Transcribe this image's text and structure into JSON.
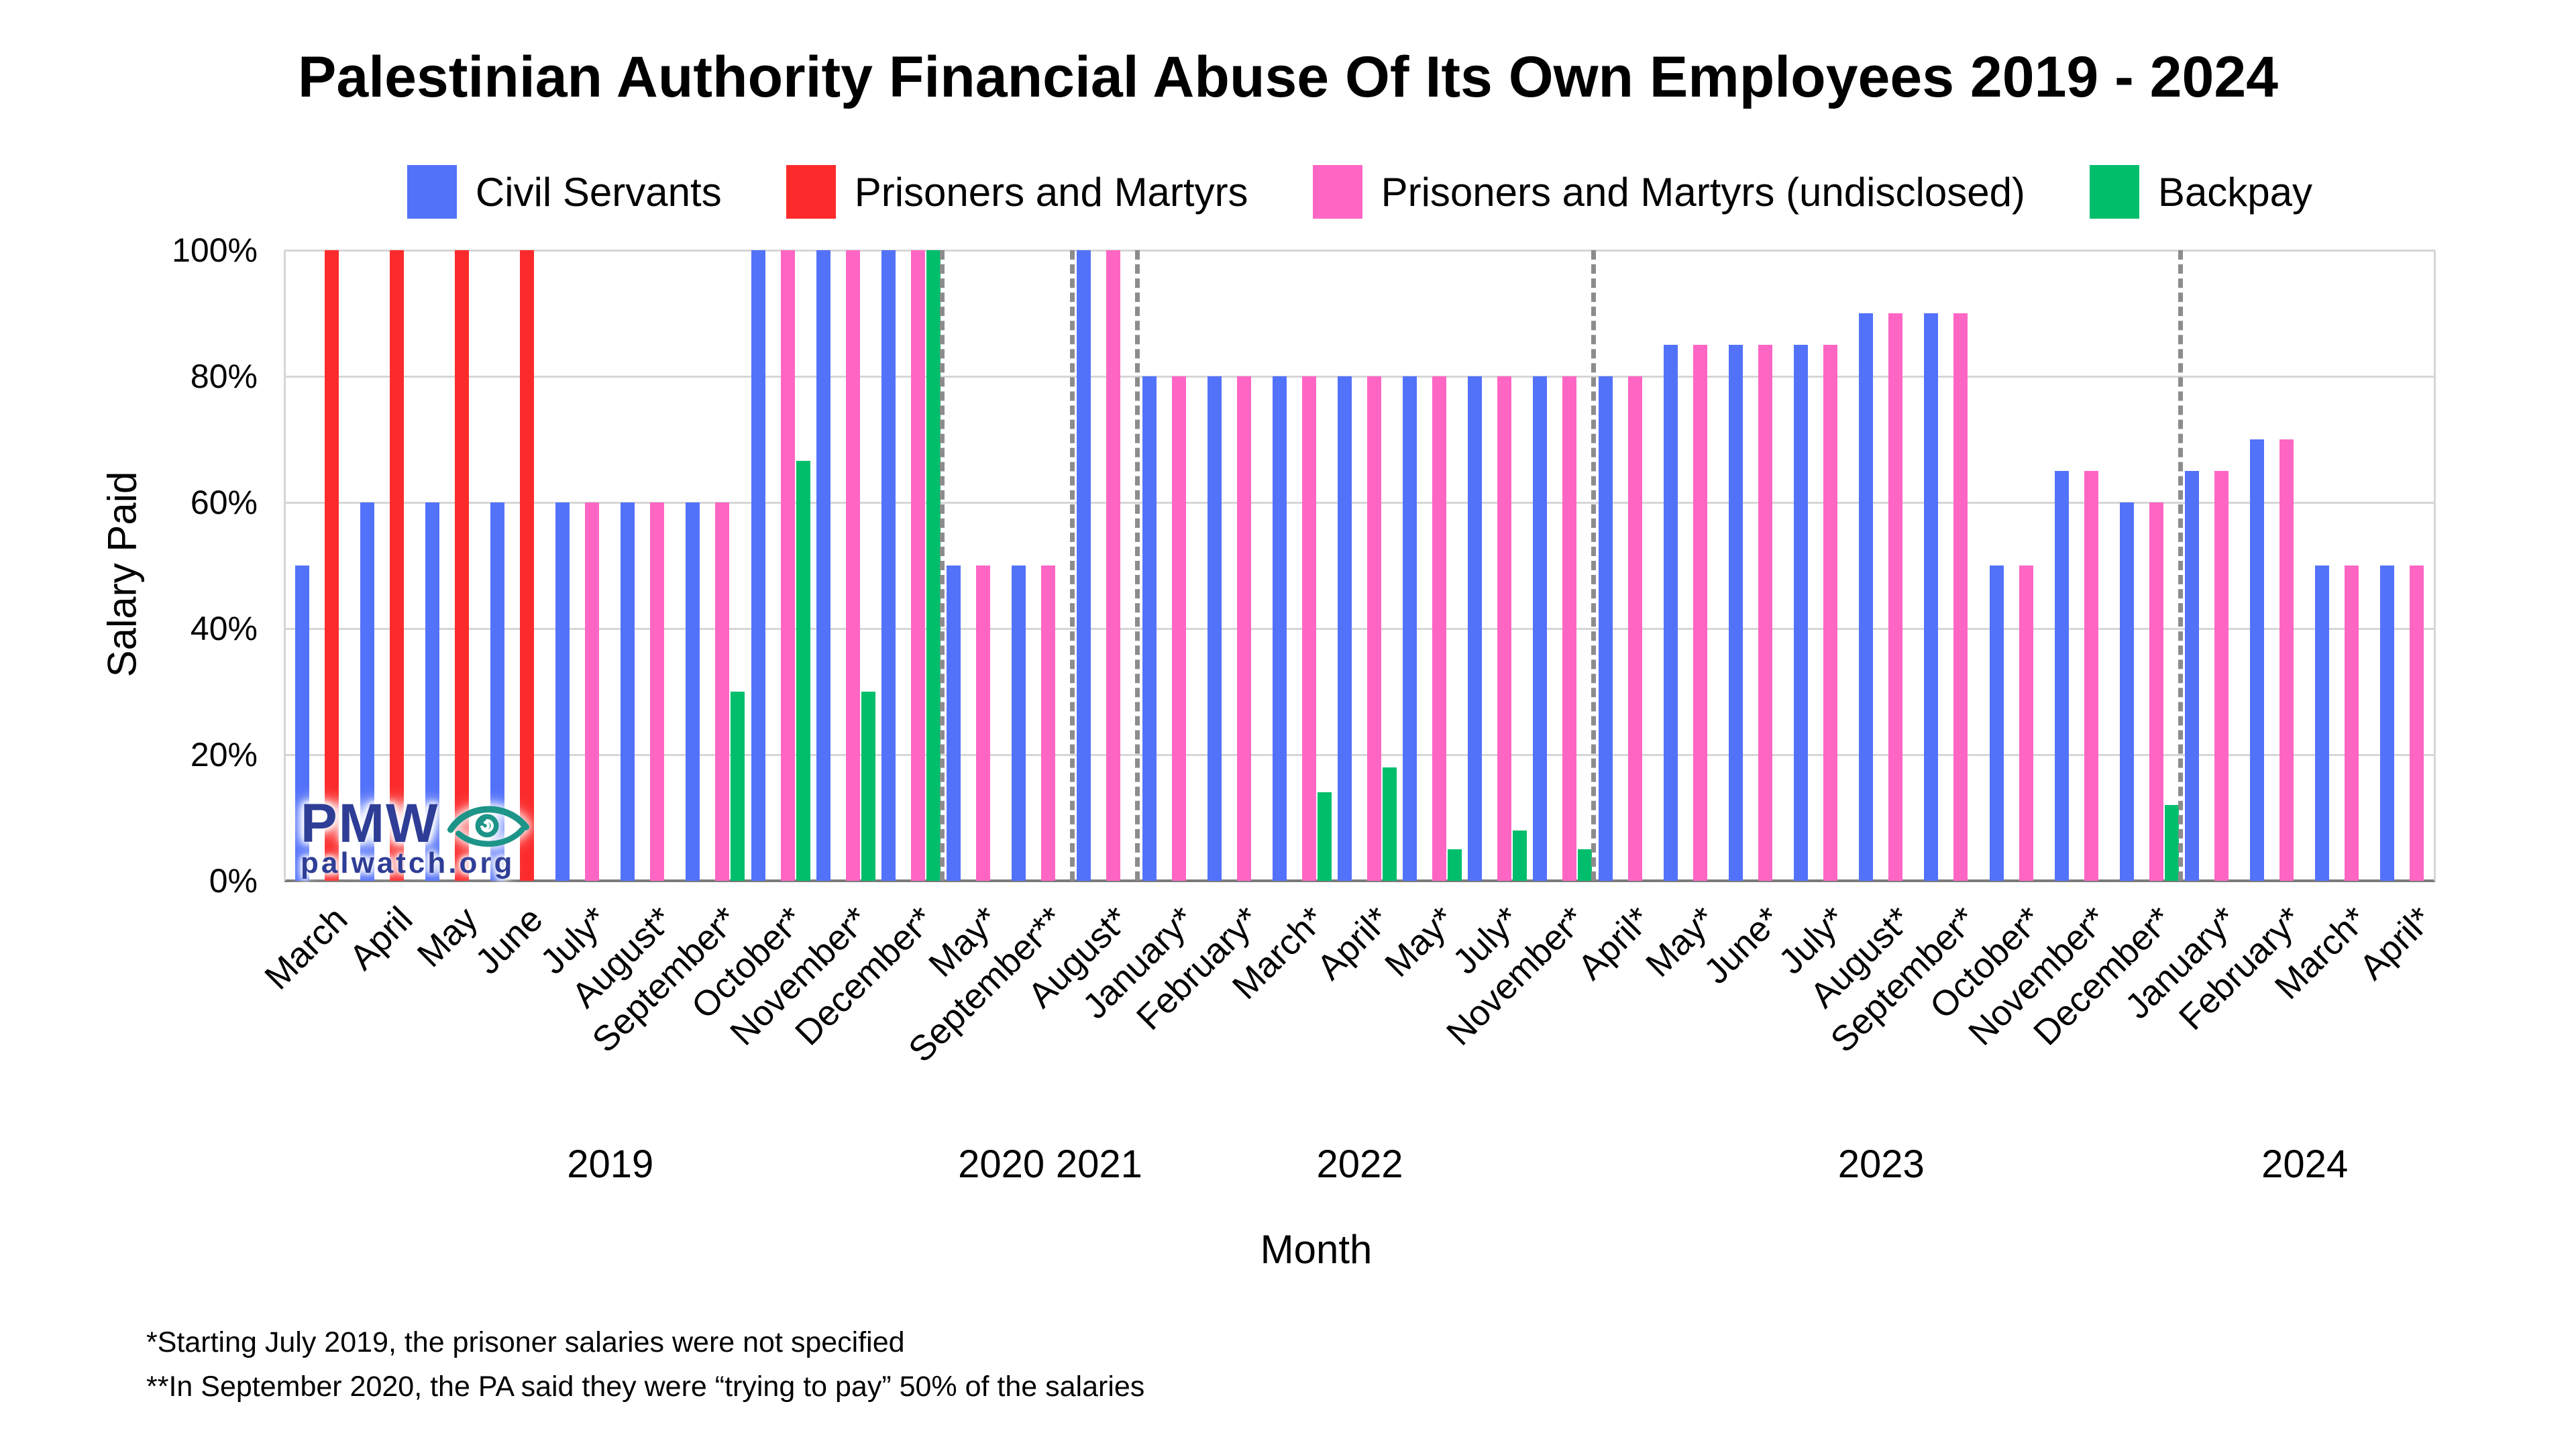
{
  "title": "Palestinian Authority Financial Abuse Of Its Own Employees 2019 - 2024",
  "watermark": {
    "brand": "PMW",
    "site": "palwatch.org"
  },
  "footnotes": [
    "*Starting July 2019, the prisoner salaries were not specified",
    "**In September 2020, the PA said they were “trying to pay” 50% of the salaries"
  ],
  "chart_data": {
    "type": "bar",
    "title": "Palestinian Authority Financial Abuse Of Its Own Employees 2019 - 2024",
    "xlabel": "Month",
    "ylabel": "Salary Paid",
    "ylim": [
      0,
      100
    ],
    "ytick_values": [
      0,
      20,
      40,
      60,
      80,
      100
    ],
    "ytick_labels": [
      "0%",
      "20%",
      "40%",
      "60%",
      "80%",
      "100%"
    ],
    "grid": true,
    "legend_position": "top",
    "colors": {
      "grid": "#D6D6D6",
      "axis": "#7A7A7A",
      "plot_border": "#D6D6D6",
      "year_separator": "#8C8C8C",
      "logo_navy": "#2E3D96",
      "logo_teal": "#1D9488"
    },
    "series": [
      {
        "key": "civil",
        "name": "Civil Servants",
        "color": "#5372FA"
      },
      {
        "key": "prisoners",
        "name": "Prisoners and Martyrs",
        "color": "#FB2B2B"
      },
      {
        "key": "undisclosed",
        "name": "Prisoners and Martyrs (undisclosed)",
        "color": "#FF66C4"
      },
      {
        "key": "backpay",
        "name": "Backpay",
        "color": "#00BE6C"
      }
    ],
    "months": [
      {
        "label": "March",
        "year": "2019",
        "civil": 50,
        "prisoners": 100,
        "undisclosed": null,
        "backpay": null
      },
      {
        "label": "April",
        "year": "2019",
        "civil": 60,
        "prisoners": 100,
        "undisclosed": null,
        "backpay": null
      },
      {
        "label": "May",
        "year": "2019",
        "civil": 60,
        "prisoners": 100,
        "undisclosed": null,
        "backpay": null
      },
      {
        "label": "June",
        "year": "2019",
        "civil": 60,
        "prisoners": 100,
        "undisclosed": null,
        "backpay": null
      },
      {
        "label": "July*",
        "year": "2019",
        "civil": 60,
        "prisoners": null,
        "undisclosed": 60,
        "backpay": null
      },
      {
        "label": "August*",
        "year": "2019",
        "civil": 60,
        "prisoners": null,
        "undisclosed": 60,
        "backpay": null
      },
      {
        "label": "September*",
        "year": "2019",
        "civil": 60,
        "prisoners": null,
        "undisclosed": 60,
        "backpay": 30
      },
      {
        "label": "October*",
        "year": "2019",
        "civil": 100,
        "prisoners": null,
        "undisclosed": 100,
        "backpay": 66.6
      },
      {
        "label": "November*",
        "year": "2019",
        "civil": 100,
        "prisoners": null,
        "undisclosed": 100,
        "backpay": 30
      },
      {
        "label": "December*",
        "year": "2019",
        "civil": 100,
        "prisoners": null,
        "undisclosed": 100,
        "backpay": 100
      },
      {
        "label": "May*",
        "year": "2020",
        "civil": 50,
        "prisoners": null,
        "undisclosed": 50,
        "backpay": null
      },
      {
        "label": "September**",
        "year": "2020",
        "civil": 50,
        "prisoners": null,
        "undisclosed": 50,
        "backpay": null
      },
      {
        "label": "August*",
        "year": "2021",
        "civil": 100,
        "prisoners": null,
        "undisclosed": 100,
        "backpay": null
      },
      {
        "label": "January*",
        "year": "2022",
        "civil": 80,
        "prisoners": null,
        "undisclosed": 80,
        "backpay": null
      },
      {
        "label": "February*",
        "year": "2022",
        "civil": 80,
        "prisoners": null,
        "undisclosed": 80,
        "backpay": null
      },
      {
        "label": "March*",
        "year": "2022",
        "civil": 80,
        "prisoners": null,
        "undisclosed": 80,
        "backpay": 14
      },
      {
        "label": "April*",
        "year": "2022",
        "civil": 80,
        "prisoners": null,
        "undisclosed": 80,
        "backpay": 18
      },
      {
        "label": "May*",
        "year": "2022",
        "civil": 80,
        "prisoners": null,
        "undisclosed": 80,
        "backpay": 5
      },
      {
        "label": "July*",
        "year": "2022",
        "civil": 80,
        "prisoners": null,
        "undisclosed": 80,
        "backpay": 8
      },
      {
        "label": "November*",
        "year": "2022",
        "civil": 80,
        "prisoners": null,
        "undisclosed": 80,
        "backpay": 5
      },
      {
        "label": "April*",
        "year": "2023",
        "civil": 80,
        "prisoners": null,
        "undisclosed": 80,
        "backpay": null
      },
      {
        "label": "May*",
        "year": "2023",
        "civil": 85,
        "prisoners": null,
        "undisclosed": 85,
        "backpay": null
      },
      {
        "label": "June*",
        "year": "2023",
        "civil": 85,
        "prisoners": null,
        "undisclosed": 85,
        "backpay": null
      },
      {
        "label": "July*",
        "year": "2023",
        "civil": 85,
        "prisoners": null,
        "undisclosed": 85,
        "backpay": null
      },
      {
        "label": "August*",
        "year": "2023",
        "civil": 90,
        "prisoners": null,
        "undisclosed": 90,
        "backpay": null
      },
      {
        "label": "September*",
        "year": "2023",
        "civil": 90,
        "prisoners": null,
        "undisclosed": 90,
        "backpay": null
      },
      {
        "label": "October*",
        "year": "2023",
        "civil": 50,
        "prisoners": null,
        "undisclosed": 50,
        "backpay": null
      },
      {
        "label": "November*",
        "year": "2023",
        "civil": 65,
        "prisoners": null,
        "undisclosed": 65,
        "backpay": null
      },
      {
        "label": "December*",
        "year": "2023",
        "civil": 60,
        "prisoners": null,
        "undisclosed": 60,
        "backpay": 12
      },
      {
        "label": "January*",
        "year": "2024",
        "civil": 65,
        "prisoners": null,
        "undisclosed": 65,
        "backpay": null
      },
      {
        "label": "February*",
        "year": "2024",
        "civil": 70,
        "prisoners": null,
        "undisclosed": 70,
        "backpay": null
      },
      {
        "label": "March*",
        "year": "2024",
        "civil": 50,
        "prisoners": null,
        "undisclosed": 50,
        "backpay": null
      },
      {
        "label": "April*",
        "year": "2024",
        "civil": 50,
        "prisoners": null,
        "undisclosed": 50,
        "backpay": null
      }
    ]
  }
}
